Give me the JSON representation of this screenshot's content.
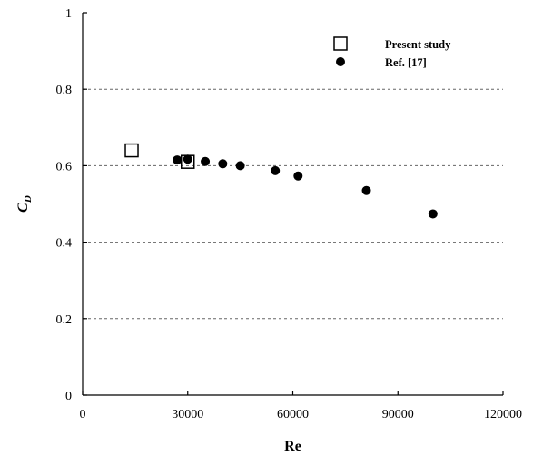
{
  "chart_data": {
    "type": "scatter",
    "title": "",
    "xlabel": "Re",
    "ylabel_main": "C",
    "ylabel_sub": "D",
    "xlim": [
      0,
      120000
    ],
    "ylim": [
      0,
      1
    ],
    "x_ticks": [
      0,
      30000,
      60000,
      90000,
      120000
    ],
    "y_ticks": [
      0,
      0.2,
      0.4,
      0.6,
      0.8,
      1
    ],
    "x_tick_labels": [
      "0",
      "30000",
      "60000",
      "90000",
      "120000"
    ],
    "y_tick_labels": [
      "0",
      "0.2",
      "0.4",
      "0.6",
      "0.8",
      "1"
    ],
    "grid": "horizontal dashed",
    "legend_position": "top-right",
    "series": [
      {
        "name": "Present study",
        "marker": "open-square",
        "color": "#000000",
        "points": [
          {
            "x": 14000,
            "y": 0.64
          },
          {
            "x": 30000,
            "y": 0.61
          }
        ]
      },
      {
        "name": "Ref. [17]",
        "marker": "filled-circle",
        "color": "#000000",
        "points": [
          {
            "x": 27000,
            "y": 0.615
          },
          {
            "x": 30000,
            "y": 0.617
          },
          {
            "x": 35000,
            "y": 0.611
          },
          {
            "x": 40000,
            "y": 0.605
          },
          {
            "x": 45000,
            "y": 0.6
          },
          {
            "x": 55000,
            "y": 0.587
          },
          {
            "x": 61500,
            "y": 0.573
          },
          {
            "x": 81000,
            "y": 0.535
          },
          {
            "x": 100000,
            "y": 0.474
          }
        ]
      }
    ]
  }
}
